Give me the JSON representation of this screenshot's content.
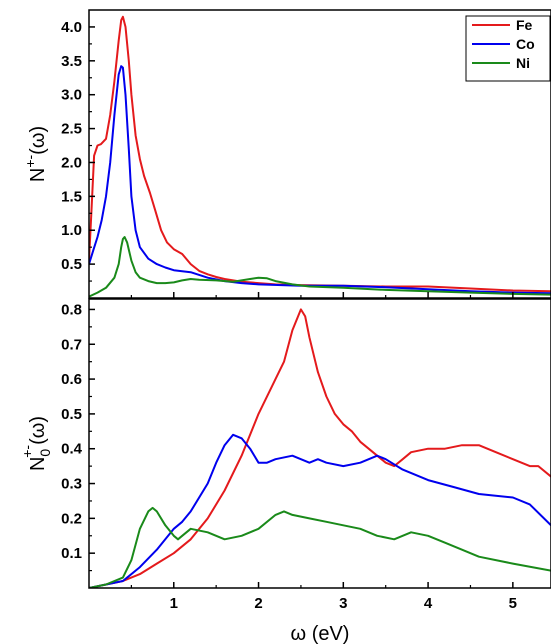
{
  "chart_data": [
    {
      "type": "line",
      "panel": "top",
      "ylabel": "N+-(ω)",
      "ylabel_parts": {
        "base": "N",
        "sup": "+-",
        "arg": "(ω)"
      },
      "xlim": [
        0,
        5.45
      ],
      "ylim": [
        0,
        4.25
      ],
      "yticks": [
        0.5,
        1.0,
        1.5,
        2.0,
        2.5,
        3.0,
        3.5,
        4.0
      ],
      "ytick_labels": [
        "0.5",
        "1.0",
        "1.5",
        "2.0",
        "2.5",
        "3.0",
        "3.5",
        "4.0"
      ],
      "legend": {
        "position": "top-right",
        "entries": [
          "Fe",
          "Co",
          "Ni"
        ]
      },
      "series": [
        {
          "name": "Fe",
          "color": "#e41a1c",
          "points": [
            [
              0.0,
              0.55
            ],
            [
              0.03,
              1.3
            ],
            [
              0.06,
              2.1
            ],
            [
              0.1,
              2.25
            ],
            [
              0.14,
              2.27
            ],
            [
              0.2,
              2.35
            ],
            [
              0.25,
              2.7
            ],
            [
              0.3,
              3.2
            ],
            [
              0.35,
              3.8
            ],
            [
              0.38,
              4.1
            ],
            [
              0.4,
              4.15
            ],
            [
              0.43,
              4.0
            ],
            [
              0.47,
              3.5
            ],
            [
              0.5,
              3.0
            ],
            [
              0.55,
              2.4
            ],
            [
              0.6,
              2.05
            ],
            [
              0.65,
              1.8
            ],
            [
              0.72,
              1.55
            ],
            [
              0.78,
              1.3
            ],
            [
              0.85,
              1.0
            ],
            [
              0.92,
              0.82
            ],
            [
              1.0,
              0.72
            ],
            [
              1.1,
              0.65
            ],
            [
              1.2,
              0.5
            ],
            [
              1.3,
              0.4
            ],
            [
              1.4,
              0.35
            ],
            [
              1.5,
              0.31
            ],
            [
              1.6,
              0.28
            ],
            [
              1.7,
              0.26
            ],
            [
              1.8,
              0.24
            ],
            [
              2.0,
              0.22
            ],
            [
              2.2,
              0.2
            ],
            [
              2.5,
              0.19
            ],
            [
              3.0,
              0.18
            ],
            [
              3.5,
              0.17
            ],
            [
              4.0,
              0.17
            ],
            [
              4.5,
              0.14
            ],
            [
              5.0,
              0.11
            ],
            [
              5.45,
              0.1
            ]
          ]
        },
        {
          "name": "Co",
          "color": "#0000ee",
          "points": [
            [
              0.0,
              0.5
            ],
            [
              0.05,
              0.7
            ],
            [
              0.1,
              0.9
            ],
            [
              0.15,
              1.15
            ],
            [
              0.2,
              1.5
            ],
            [
              0.25,
              2.0
            ],
            [
              0.3,
              2.7
            ],
            [
              0.35,
              3.3
            ],
            [
              0.38,
              3.42
            ],
            [
              0.4,
              3.4
            ],
            [
              0.43,
              3.0
            ],
            [
              0.47,
              2.2
            ],
            [
              0.5,
              1.5
            ],
            [
              0.55,
              1.0
            ],
            [
              0.6,
              0.75
            ],
            [
              0.7,
              0.58
            ],
            [
              0.8,
              0.5
            ],
            [
              0.9,
              0.45
            ],
            [
              1.0,
              0.41
            ],
            [
              1.2,
              0.38
            ],
            [
              1.4,
              0.3
            ],
            [
              1.6,
              0.25
            ],
            [
              1.8,
              0.22
            ],
            [
              2.0,
              0.2
            ],
            [
              2.5,
              0.18
            ],
            [
              3.0,
              0.18
            ],
            [
              3.5,
              0.16
            ],
            [
              4.0,
              0.13
            ],
            [
              4.5,
              0.1
            ],
            [
              5.0,
              0.08
            ],
            [
              5.45,
              0.07
            ]
          ]
        },
        {
          "name": "Ni",
          "color": "#1a8a1a",
          "points": [
            [
              0.0,
              0.02
            ],
            [
              0.1,
              0.08
            ],
            [
              0.2,
              0.15
            ],
            [
              0.3,
              0.3
            ],
            [
              0.35,
              0.5
            ],
            [
              0.38,
              0.75
            ],
            [
              0.4,
              0.87
            ],
            [
              0.42,
              0.9
            ],
            [
              0.45,
              0.82
            ],
            [
              0.5,
              0.55
            ],
            [
              0.55,
              0.38
            ],
            [
              0.6,
              0.3
            ],
            [
              0.7,
              0.25
            ],
            [
              0.8,
              0.22
            ],
            [
              0.9,
              0.22
            ],
            [
              1.0,
              0.23
            ],
            [
              1.1,
              0.26
            ],
            [
              1.2,
              0.28
            ],
            [
              1.3,
              0.27
            ],
            [
              1.5,
              0.26
            ],
            [
              1.7,
              0.24
            ],
            [
              1.9,
              0.28
            ],
            [
              2.0,
              0.3
            ],
            [
              2.1,
              0.29
            ],
            [
              2.2,
              0.25
            ],
            [
              2.4,
              0.2
            ],
            [
              2.6,
              0.17
            ],
            [
              3.0,
              0.15
            ],
            [
              3.5,
              0.12
            ],
            [
              4.0,
              0.1
            ],
            [
              4.5,
              0.08
            ],
            [
              5.0,
              0.06
            ],
            [
              5.45,
              0.05
            ]
          ]
        }
      ]
    },
    {
      "type": "line",
      "panel": "bottom",
      "xlabel": "ω (eV)",
      "ylabel": "N0+-(ω)",
      "ylabel_parts": {
        "base": "N",
        "sup": "+-",
        "sub": "0",
        "arg": "(ω)"
      },
      "xlim": [
        0,
        5.45
      ],
      "ylim": [
        0,
        0.83
      ],
      "xticks": [
        1,
        2,
        3,
        4,
        5
      ],
      "xtick_labels": [
        "1",
        "2",
        "3",
        "4",
        "5"
      ],
      "yticks": [
        0.1,
        0.2,
        0.3,
        0.4,
        0.5,
        0.6,
        0.7,
        0.8
      ],
      "ytick_labels": [
        "0.1",
        "0.2",
        "0.3",
        "0.4",
        "0.5",
        "0.6",
        "0.7",
        "0.8"
      ],
      "series": [
        {
          "name": "Fe",
          "color": "#e41a1c",
          "points": [
            [
              0.0,
              0.0
            ],
            [
              0.2,
              0.01
            ],
            [
              0.4,
              0.02
            ],
            [
              0.6,
              0.04
            ],
            [
              0.8,
              0.07
            ],
            [
              1.0,
              0.1
            ],
            [
              1.2,
              0.14
            ],
            [
              1.4,
              0.2
            ],
            [
              1.6,
              0.28
            ],
            [
              1.8,
              0.38
            ],
            [
              2.0,
              0.5
            ],
            [
              2.2,
              0.6
            ],
            [
              2.3,
              0.65
            ],
            [
              2.4,
              0.74
            ],
            [
              2.5,
              0.8
            ],
            [
              2.55,
              0.78
            ],
            [
              2.6,
              0.72
            ],
            [
              2.7,
              0.62
            ],
            [
              2.8,
              0.55
            ],
            [
              2.9,
              0.5
            ],
            [
              3.0,
              0.47
            ],
            [
              3.1,
              0.45
            ],
            [
              3.2,
              0.42
            ],
            [
              3.3,
              0.4
            ],
            [
              3.4,
              0.38
            ],
            [
              3.5,
              0.36
            ],
            [
              3.6,
              0.35
            ],
            [
              3.7,
              0.37
            ],
            [
              3.8,
              0.39
            ],
            [
              4.0,
              0.4
            ],
            [
              4.2,
              0.4
            ],
            [
              4.4,
              0.41
            ],
            [
              4.6,
              0.41
            ],
            [
              4.8,
              0.39
            ],
            [
              5.0,
              0.37
            ],
            [
              5.2,
              0.35
            ],
            [
              5.3,
              0.35
            ],
            [
              5.45,
              0.32
            ]
          ]
        },
        {
          "name": "Co",
          "color": "#0000ee",
          "points": [
            [
              0.0,
              0.0
            ],
            [
              0.2,
              0.01
            ],
            [
              0.4,
              0.02
            ],
            [
              0.6,
              0.06
            ],
            [
              0.8,
              0.11
            ],
            [
              1.0,
              0.17
            ],
            [
              1.1,
              0.19
            ],
            [
              1.2,
              0.22
            ],
            [
              1.4,
              0.3
            ],
            [
              1.5,
              0.36
            ],
            [
              1.6,
              0.41
            ],
            [
              1.7,
              0.44
            ],
            [
              1.8,
              0.43
            ],
            [
              1.9,
              0.4
            ],
            [
              2.0,
              0.36
            ],
            [
              2.1,
              0.36
            ],
            [
              2.2,
              0.37
            ],
            [
              2.4,
              0.38
            ],
            [
              2.5,
              0.37
            ],
            [
              2.6,
              0.36
            ],
            [
              2.7,
              0.37
            ],
            [
              2.8,
              0.36
            ],
            [
              3.0,
              0.35
            ],
            [
              3.2,
              0.36
            ],
            [
              3.4,
              0.38
            ],
            [
              3.5,
              0.37
            ],
            [
              3.7,
              0.34
            ],
            [
              4.0,
              0.31
            ],
            [
              4.3,
              0.29
            ],
            [
              4.6,
              0.27
            ],
            [
              5.0,
              0.26
            ],
            [
              5.2,
              0.24
            ],
            [
              5.45,
              0.18
            ]
          ]
        },
        {
          "name": "Ni",
          "color": "#1a8a1a",
          "points": [
            [
              0.0,
              0.0
            ],
            [
              0.2,
              0.01
            ],
            [
              0.4,
              0.03
            ],
            [
              0.5,
              0.08
            ],
            [
              0.6,
              0.17
            ],
            [
              0.7,
              0.22
            ],
            [
              0.75,
              0.23
            ],
            [
              0.8,
              0.22
            ],
            [
              0.9,
              0.18
            ],
            [
              1.0,
              0.15
            ],
            [
              1.05,
              0.14
            ],
            [
              1.1,
              0.15
            ],
            [
              1.2,
              0.17
            ],
            [
              1.4,
              0.16
            ],
            [
              1.6,
              0.14
            ],
            [
              1.8,
              0.15
            ],
            [
              2.0,
              0.17
            ],
            [
              2.2,
              0.21
            ],
            [
              2.3,
              0.22
            ],
            [
              2.4,
              0.21
            ],
            [
              2.6,
              0.2
            ],
            [
              2.8,
              0.19
            ],
            [
              3.0,
              0.18
            ],
            [
              3.2,
              0.17
            ],
            [
              3.4,
              0.15
            ],
            [
              3.6,
              0.14
            ],
            [
              3.8,
              0.16
            ],
            [
              4.0,
              0.15
            ],
            [
              4.2,
              0.13
            ],
            [
              4.4,
              0.11
            ],
            [
              4.6,
              0.09
            ],
            [
              5.0,
              0.07
            ],
            [
              5.45,
              0.05
            ]
          ]
        }
      ]
    }
  ]
}
